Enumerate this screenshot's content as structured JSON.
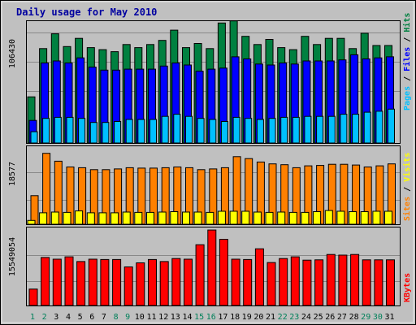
{
  "chart_data": [
    {
      "type": "bar",
      "title": "Daily usage for May 2010",
      "categories": [
        "1",
        "2",
        "3",
        "4",
        "5",
        "6",
        "7",
        "8",
        "9",
        "10",
        "11",
        "12",
        "13",
        "14",
        "15",
        "16",
        "17",
        "18",
        "19",
        "20",
        "21",
        "22",
        "23",
        "24",
        "25",
        "26",
        "27",
        "28",
        "29",
        "30",
        "31"
      ],
      "weekend_days": [
        "1",
        "2",
        "8",
        "9",
        "15",
        "16",
        "22",
        "23",
        "29",
        "30"
      ],
      "ytick": "106430",
      "ylim": [
        0,
        118000
      ],
      "series": [
        {
          "name": "Hits",
          "color": "#008040",
          "values": [
            45000,
            92000,
            106430,
            94000,
            102000,
            93000,
            91000,
            89000,
            96000,
            93000,
            96000,
            100000,
            110000,
            93000,
            97000,
            92000,
            117000,
            119000,
            104000,
            96000,
            101000,
            93000,
            91000,
            104000,
            96000,
            102000,
            102000,
            92000,
            107000,
            95000,
            95000
          ]
        },
        {
          "name": "Files",
          "color": "#0000ff",
          "values": [
            22000,
            78000,
            80000,
            78000,
            83000,
            74000,
            71000,
            71000,
            72000,
            72000,
            72000,
            75000,
            78000,
            76000,
            70000,
            72000,
            73000,
            84000,
            82000,
            77000,
            76000,
            78000,
            77000,
            80000,
            80000,
            80000,
            81000,
            86000,
            82000,
            83000,
            84000
          ]
        },
        {
          "name": "Pages",
          "color": "#00c0ff",
          "values": [
            11000,
            24000,
            25000,
            25000,
            24000,
            20000,
            20000,
            21000,
            23000,
            23000,
            23000,
            26000,
            28000,
            26000,
            24000,
            23000,
            21000,
            25000,
            24000,
            23000,
            24000,
            25000,
            25000,
            26000,
            26000,
            26000,
            28000,
            28000,
            30000,
            31000,
            33000
          ]
        }
      ]
    },
    {
      "type": "bar",
      "ytick": "18577",
      "ylim": [
        0,
        20000
      ],
      "series": [
        {
          "name": "Visits",
          "color": "#ffff00",
          "values": [
            1000,
            3000,
            3200,
            3100,
            3500,
            3000,
            3000,
            3000,
            3200,
            3100,
            3100,
            3200,
            3300,
            3200,
            3200,
            3100,
            3400,
            3400,
            3400,
            3200,
            3100,
            3200,
            3100,
            3100,
            3300,
            3600,
            3400,
            3300,
            3300,
            3400,
            3400
          ]
        },
        {
          "name": "Sites",
          "color": "#ff8000",
          "values": [
            7500,
            18577,
            16500,
            15000,
            14800,
            14300,
            14300,
            14500,
            14800,
            14700,
            14700,
            14800,
            15000,
            14800,
            14300,
            14500,
            14800,
            17700,
            17200,
            16300,
            15800,
            15600,
            14800,
            15300,
            15400,
            15700,
            15700,
            15500,
            15000,
            15300,
            15800
          ]
        }
      ]
    },
    {
      "type": "bar",
      "ytick": "15549054",
      "ylim": [
        0,
        23000000
      ],
      "series": [
        {
          "name": "KBytes",
          "color": "#ff0000",
          "values": [
            4900000,
            14300000,
            13800000,
            14500000,
            13100000,
            13800000,
            13700000,
            13700000,
            11500000,
            12700000,
            13700000,
            13100000,
            14000000,
            13800000,
            18100000,
            22500000,
            19700000,
            13800000,
            13700000,
            16900000,
            12800000,
            14000000,
            14500000,
            13500000,
            13600000,
            15200000,
            15000000,
            15200000,
            13600000,
            13600000,
            13600000
          ]
        }
      ]
    }
  ]
}
